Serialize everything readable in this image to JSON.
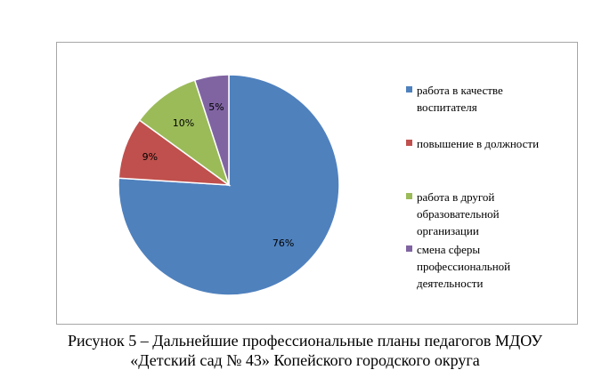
{
  "chart_data": {
    "type": "pie",
    "categories": [
      "работа в качестве воспитателя",
      "повышение в должности",
      "работа в другой образовательной организации",
      "смена сферы профессиональной деятельности"
    ],
    "values": [
      76,
      9,
      10,
      5
    ],
    "data_labels": [
      "76%",
      "9%",
      "10%",
      "5%"
    ],
    "colors": [
      "#4f81bd",
      "#c0504d",
      "#9bbb59",
      "#8064a2"
    ],
    "legend": {
      "position": "right",
      "items": [
        {
          "lines": [
            "работа в качестве",
            "воспитателя"
          ],
          "color": "#4f81bd"
        },
        {
          "lines": [
            "повышение в должности"
          ],
          "color": "#c0504d"
        },
        {
          "lines": [
            "работа в другой",
            "образовательной",
            "организации"
          ],
          "color": "#9bbb59"
        },
        {
          "lines": [
            "смена сферы",
            "профессиональной",
            "деятельности"
          ],
          "color": "#8064a2"
        }
      ]
    }
  },
  "caption": {
    "line1": "Рисунок 5 – Дальнейшие профессиональные планы педагогов МДОУ",
    "line2": "«Детский сад № 43» Копейского городского округа"
  }
}
